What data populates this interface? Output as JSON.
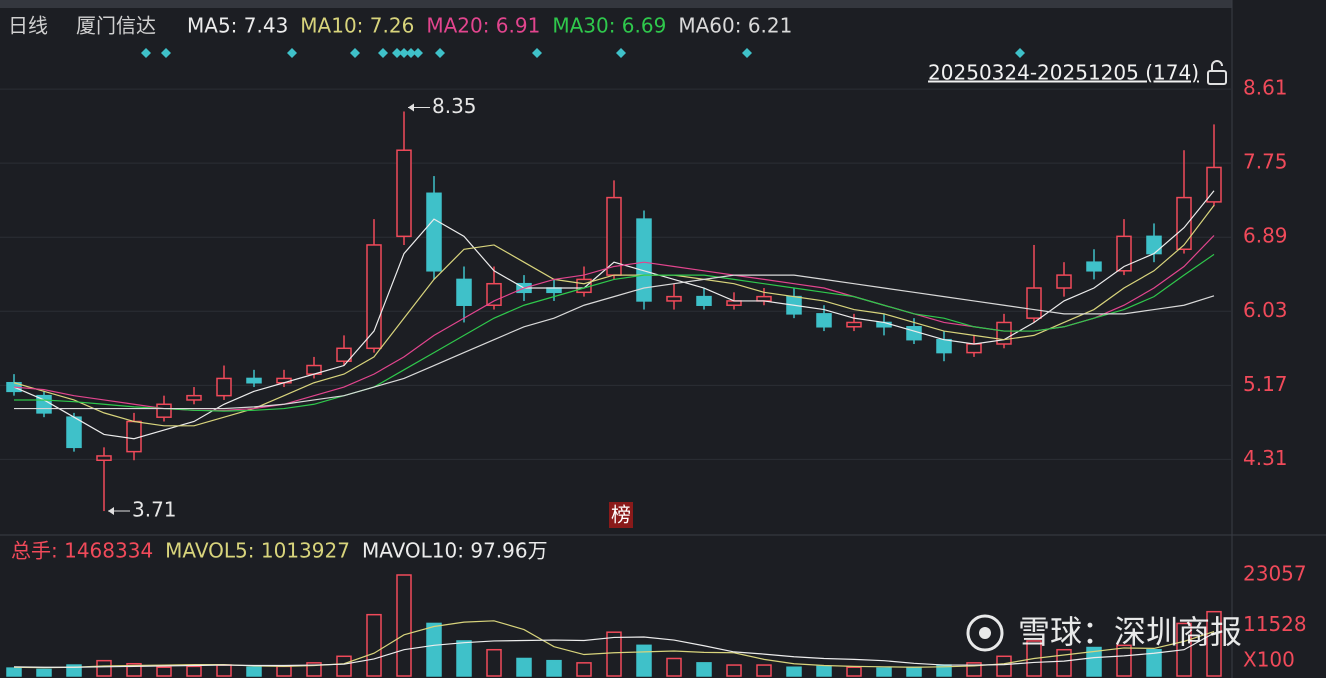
{
  "chart_data": {
    "type": "candlestick",
    "period": "日线",
    "name": "厦门信达",
    "range_label": "20250324-20251205 (174)",
    "badge": "榜",
    "watermark": "雪球：深圳商报",
    "up_color": "#f04a5a",
    "down_color": "#3fc1c9",
    "grid": true,
    "ylim": [
      3.49,
      9.18
    ],
    "yticks": [
      4.31,
      5.17,
      6.03,
      6.89,
      7.75,
      8.61
    ],
    "open": [
      5.2,
      5.05,
      4.8,
      4.3,
      4.4,
      4.8,
      5.0,
      5.05,
      5.25,
      5.2,
      5.3,
      5.45,
      5.6,
      6.9,
      7.4,
      6.4,
      6.1,
      6.35,
      6.3,
      6.25,
      6.45,
      7.1,
      6.15,
      6.2,
      6.1,
      6.15,
      6.2,
      6.0,
      5.85,
      5.9,
      5.85,
      5.7,
      5.55,
      5.65,
      5.95,
      6.3,
      6.6,
      6.5,
      6.9,
      6.75,
      7.3
    ],
    "high": [
      5.3,
      5.1,
      4.85,
      4.45,
      4.85,
      5.05,
      5.15,
      5.4,
      5.35,
      5.35,
      5.5,
      5.75,
      7.1,
      8.35,
      7.6,
      6.55,
      6.55,
      6.45,
      6.4,
      6.55,
      7.55,
      7.2,
      6.35,
      6.3,
      6.25,
      6.3,
      6.3,
      6.1,
      6.0,
      6.0,
      5.95,
      5.8,
      5.75,
      6.0,
      6.8,
      6.6,
      6.75,
      7.1,
      7.05,
      7.9,
      8.2
    ],
    "low": [
      5.05,
      4.8,
      4.4,
      3.71,
      4.3,
      4.75,
      4.95,
      5.0,
      5.15,
      5.15,
      5.25,
      5.4,
      5.55,
      6.8,
      6.4,
      5.9,
      6.05,
      6.15,
      6.15,
      6.2,
      6.4,
      6.05,
      6.05,
      6.05,
      6.05,
      6.1,
      5.95,
      5.8,
      5.8,
      5.75,
      5.65,
      5.45,
      5.5,
      5.6,
      5.9,
      6.2,
      6.4,
      6.45,
      6.6,
      6.7,
      7.25
    ],
    "close": [
      5.1,
      4.85,
      4.45,
      4.35,
      4.75,
      4.95,
      5.05,
      5.25,
      5.2,
      5.25,
      5.4,
      5.6,
      6.8,
      7.9,
      6.5,
      6.1,
      6.35,
      6.25,
      6.25,
      6.4,
      7.35,
      6.15,
      6.2,
      6.1,
      6.15,
      6.2,
      6.0,
      5.85,
      5.9,
      5.85,
      5.7,
      5.55,
      5.65,
      5.9,
      6.3,
      6.45,
      6.5,
      6.9,
      6.7,
      7.35,
      7.7
    ],
    "ma": [
      {
        "label": "MA5: 7.43",
        "color": "#ececec",
        "values": [
          5.15,
          5.0,
          4.8,
          4.6,
          4.55,
          4.65,
          4.75,
          4.95,
          5.1,
          5.2,
          5.3,
          5.4,
          5.8,
          6.7,
          7.1,
          6.9,
          6.5,
          6.3,
          6.3,
          6.3,
          6.6,
          6.5,
          6.4,
          6.3,
          6.15,
          6.15,
          6.1,
          6.05,
          5.95,
          5.9,
          5.8,
          5.7,
          5.65,
          5.7,
          5.9,
          6.15,
          6.3,
          6.55,
          6.7,
          7.0,
          7.43
        ]
      },
      {
        "label": "MA10: 7.26",
        "color": "#d8d47c",
        "values": [
          5.2,
          5.1,
          5.0,
          4.85,
          4.75,
          4.7,
          4.7,
          4.8,
          4.9,
          5.05,
          5.2,
          5.3,
          5.5,
          5.95,
          6.4,
          6.75,
          6.8,
          6.6,
          6.4,
          6.35,
          6.45,
          6.45,
          6.45,
          6.4,
          6.35,
          6.25,
          6.2,
          6.15,
          6.05,
          6.0,
          5.9,
          5.8,
          5.75,
          5.7,
          5.75,
          5.9,
          6.05,
          6.3,
          6.5,
          6.8,
          7.26
        ]
      },
      {
        "label": "MA20: 6.91",
        "color": "#e2458e",
        "values": [
          5.15,
          5.12,
          5.05,
          5.0,
          4.95,
          4.9,
          4.88,
          4.88,
          4.9,
          4.95,
          5.05,
          5.15,
          5.3,
          5.5,
          5.75,
          5.95,
          6.15,
          6.3,
          6.4,
          6.45,
          6.55,
          6.6,
          6.55,
          6.5,
          6.45,
          6.4,
          6.35,
          6.3,
          6.2,
          6.1,
          6.0,
          5.9,
          5.85,
          5.8,
          5.8,
          5.85,
          5.95,
          6.1,
          6.3,
          6.55,
          6.91
        ]
      },
      {
        "label": "MA30: 6.69",
        "color": "#2fc84c",
        "values": [
          5.0,
          5.0,
          4.98,
          4.95,
          4.92,
          4.9,
          4.88,
          4.87,
          4.88,
          4.9,
          4.95,
          5.05,
          5.15,
          5.35,
          5.55,
          5.75,
          5.95,
          6.1,
          6.2,
          6.3,
          6.4,
          6.45,
          6.45,
          6.45,
          6.4,
          6.35,
          6.3,
          6.25,
          6.2,
          6.1,
          6.0,
          5.95,
          5.85,
          5.8,
          5.8,
          5.85,
          5.95,
          6.05,
          6.2,
          6.45,
          6.69
        ]
      },
      {
        "label": "MA60: 6.21",
        "color": "#d9d9d9",
        "values": [
          4.9,
          4.9,
          4.9,
          4.9,
          4.9,
          4.9,
          4.9,
          4.9,
          4.92,
          4.95,
          5.0,
          5.05,
          5.15,
          5.25,
          5.4,
          5.55,
          5.7,
          5.85,
          5.95,
          6.1,
          6.2,
          6.3,
          6.35,
          6.4,
          6.45,
          6.45,
          6.45,
          6.4,
          6.35,
          6.3,
          6.25,
          6.2,
          6.15,
          6.1,
          6.05,
          6.0,
          6.0,
          6.0,
          6.05,
          6.1,
          6.21
        ]
      }
    ],
    "volume": {
      "header": "总手: 1468334",
      "unit_label": "X100",
      "ylim": [
        0,
        23057
      ],
      "yticks": [
        11528,
        23057
      ],
      "values": [
        1800,
        1500,
        2500,
        3500,
        2800,
        2000,
        2200,
        2500,
        2000,
        2200,
        3000,
        4500,
        14000,
        23057,
        12000,
        8000,
        6000,
        4000,
        3500,
        3000,
        10000,
        7000,
        4000,
        3000,
        2500,
        2500,
        2000,
        2200,
        2000,
        1800,
        2000,
        2500,
        3000,
        4500,
        8000,
        6000,
        6500,
        7000,
        6000,
        12000,
        14683
      ],
      "ma": [
        {
          "label": "MAVOL5: 1013927",
          "color": "#d8d47c",
          "values": [
            2000,
            1900,
            2000,
            2300,
            2400,
            2500,
            2600,
            2600,
            2300,
            2200,
            2400,
            2800,
            5200,
            9400,
            11300,
            12300,
            12600,
            10600,
            6700,
            4900,
            5300,
            5500,
            5700,
            5400,
            5300,
            3800,
            2800,
            2400,
            2200,
            2100,
            2000,
            2100,
            2300,
            2800,
            4000,
            4800,
            5600,
            6400,
            6300,
            7900,
            10139
          ]
        },
        {
          "label": "MAVOL10: 97.96万",
          "color": "#ececec",
          "values": [
            2100,
            2000,
            2000,
            2100,
            2200,
            2300,
            2400,
            2500,
            2400,
            2400,
            2500,
            2700,
            3900,
            6000,
            7000,
            7600,
            8000,
            8100,
            8200,
            8100,
            8800,
            8900,
            8200,
            6900,
            5500,
            5000,
            4400,
            4000,
            3800,
            3500,
            2900,
            2500,
            2500,
            2600,
            3100,
            3400,
            4200,
            4600,
            5200,
            6000,
            9796
          ]
        }
      ]
    }
  }
}
